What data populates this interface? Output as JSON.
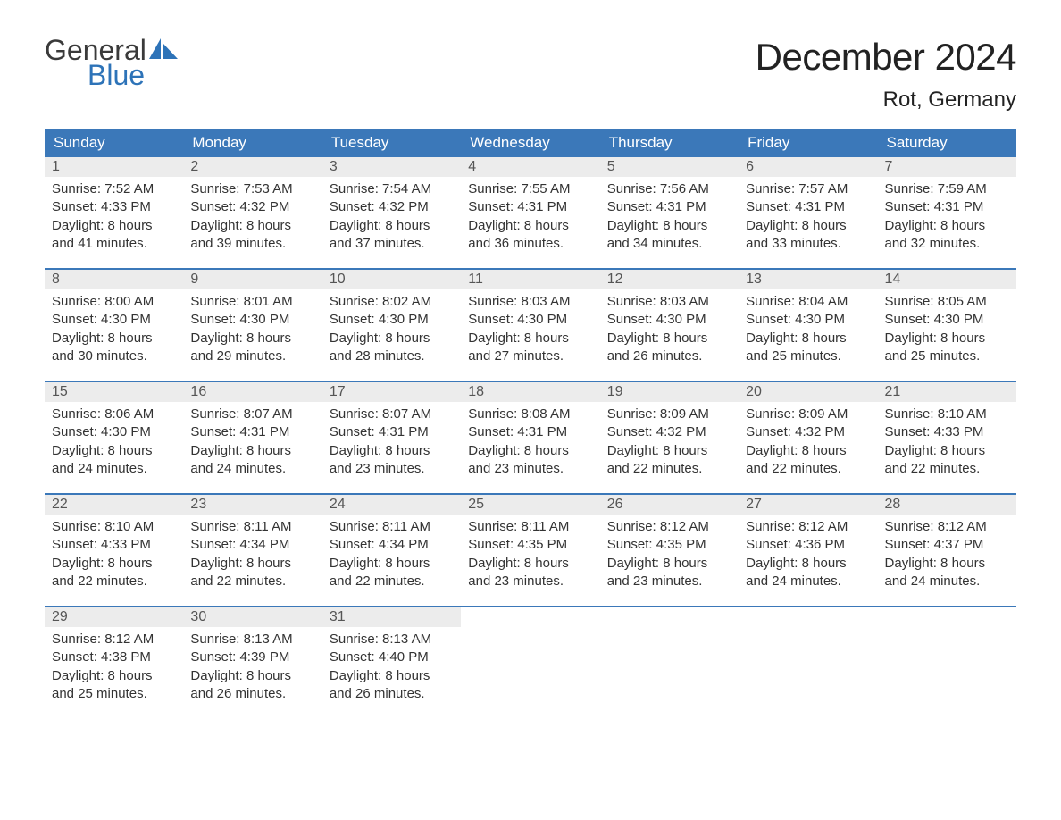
{
  "brand": {
    "general": "General",
    "blue": "Blue"
  },
  "title": "December 2024",
  "location": "Rot, Germany",
  "colors": {
    "header_bg": "#3b78b9",
    "header_text": "#ffffff",
    "daynum_bg": "#ececec",
    "daynum_text": "#555555",
    "body_text": "#333333",
    "brand_blue": "#2d73b8",
    "brand_gray": "#3a3a3a",
    "page_bg": "#ffffff"
  },
  "weekdays": [
    "Sunday",
    "Monday",
    "Tuesday",
    "Wednesday",
    "Thursday",
    "Friday",
    "Saturday"
  ],
  "weeks": [
    [
      {
        "n": "1",
        "sr": "Sunrise: 7:52 AM",
        "ss": "Sunset: 4:33 PM",
        "d1": "Daylight: 8 hours",
        "d2": "and 41 minutes."
      },
      {
        "n": "2",
        "sr": "Sunrise: 7:53 AM",
        "ss": "Sunset: 4:32 PM",
        "d1": "Daylight: 8 hours",
        "d2": "and 39 minutes."
      },
      {
        "n": "3",
        "sr": "Sunrise: 7:54 AM",
        "ss": "Sunset: 4:32 PM",
        "d1": "Daylight: 8 hours",
        "d2": "and 37 minutes."
      },
      {
        "n": "4",
        "sr": "Sunrise: 7:55 AM",
        "ss": "Sunset: 4:31 PM",
        "d1": "Daylight: 8 hours",
        "d2": "and 36 minutes."
      },
      {
        "n": "5",
        "sr": "Sunrise: 7:56 AM",
        "ss": "Sunset: 4:31 PM",
        "d1": "Daylight: 8 hours",
        "d2": "and 34 minutes."
      },
      {
        "n": "6",
        "sr": "Sunrise: 7:57 AM",
        "ss": "Sunset: 4:31 PM",
        "d1": "Daylight: 8 hours",
        "d2": "and 33 minutes."
      },
      {
        "n": "7",
        "sr": "Sunrise: 7:59 AM",
        "ss": "Sunset: 4:31 PM",
        "d1": "Daylight: 8 hours",
        "d2": "and 32 minutes."
      }
    ],
    [
      {
        "n": "8",
        "sr": "Sunrise: 8:00 AM",
        "ss": "Sunset: 4:30 PM",
        "d1": "Daylight: 8 hours",
        "d2": "and 30 minutes."
      },
      {
        "n": "9",
        "sr": "Sunrise: 8:01 AM",
        "ss": "Sunset: 4:30 PM",
        "d1": "Daylight: 8 hours",
        "d2": "and 29 minutes."
      },
      {
        "n": "10",
        "sr": "Sunrise: 8:02 AM",
        "ss": "Sunset: 4:30 PM",
        "d1": "Daylight: 8 hours",
        "d2": "and 28 minutes."
      },
      {
        "n": "11",
        "sr": "Sunrise: 8:03 AM",
        "ss": "Sunset: 4:30 PM",
        "d1": "Daylight: 8 hours",
        "d2": "and 27 minutes."
      },
      {
        "n": "12",
        "sr": "Sunrise: 8:03 AM",
        "ss": "Sunset: 4:30 PM",
        "d1": "Daylight: 8 hours",
        "d2": "and 26 minutes."
      },
      {
        "n": "13",
        "sr": "Sunrise: 8:04 AM",
        "ss": "Sunset: 4:30 PM",
        "d1": "Daylight: 8 hours",
        "d2": "and 25 minutes."
      },
      {
        "n": "14",
        "sr": "Sunrise: 8:05 AM",
        "ss": "Sunset: 4:30 PM",
        "d1": "Daylight: 8 hours",
        "d2": "and 25 minutes."
      }
    ],
    [
      {
        "n": "15",
        "sr": "Sunrise: 8:06 AM",
        "ss": "Sunset: 4:30 PM",
        "d1": "Daylight: 8 hours",
        "d2": "and 24 minutes."
      },
      {
        "n": "16",
        "sr": "Sunrise: 8:07 AM",
        "ss": "Sunset: 4:31 PM",
        "d1": "Daylight: 8 hours",
        "d2": "and 24 minutes."
      },
      {
        "n": "17",
        "sr": "Sunrise: 8:07 AM",
        "ss": "Sunset: 4:31 PM",
        "d1": "Daylight: 8 hours",
        "d2": "and 23 minutes."
      },
      {
        "n": "18",
        "sr": "Sunrise: 8:08 AM",
        "ss": "Sunset: 4:31 PM",
        "d1": "Daylight: 8 hours",
        "d2": "and 23 minutes."
      },
      {
        "n": "19",
        "sr": "Sunrise: 8:09 AM",
        "ss": "Sunset: 4:32 PM",
        "d1": "Daylight: 8 hours",
        "d2": "and 22 minutes."
      },
      {
        "n": "20",
        "sr": "Sunrise: 8:09 AM",
        "ss": "Sunset: 4:32 PM",
        "d1": "Daylight: 8 hours",
        "d2": "and 22 minutes."
      },
      {
        "n": "21",
        "sr": "Sunrise: 8:10 AM",
        "ss": "Sunset: 4:33 PM",
        "d1": "Daylight: 8 hours",
        "d2": "and 22 minutes."
      }
    ],
    [
      {
        "n": "22",
        "sr": "Sunrise: 8:10 AM",
        "ss": "Sunset: 4:33 PM",
        "d1": "Daylight: 8 hours",
        "d2": "and 22 minutes."
      },
      {
        "n": "23",
        "sr": "Sunrise: 8:11 AM",
        "ss": "Sunset: 4:34 PM",
        "d1": "Daylight: 8 hours",
        "d2": "and 22 minutes."
      },
      {
        "n": "24",
        "sr": "Sunrise: 8:11 AM",
        "ss": "Sunset: 4:34 PM",
        "d1": "Daylight: 8 hours",
        "d2": "and 22 minutes."
      },
      {
        "n": "25",
        "sr": "Sunrise: 8:11 AM",
        "ss": "Sunset: 4:35 PM",
        "d1": "Daylight: 8 hours",
        "d2": "and 23 minutes."
      },
      {
        "n": "26",
        "sr": "Sunrise: 8:12 AM",
        "ss": "Sunset: 4:35 PM",
        "d1": "Daylight: 8 hours",
        "d2": "and 23 minutes."
      },
      {
        "n": "27",
        "sr": "Sunrise: 8:12 AM",
        "ss": "Sunset: 4:36 PM",
        "d1": "Daylight: 8 hours",
        "d2": "and 24 minutes."
      },
      {
        "n": "28",
        "sr": "Sunrise: 8:12 AM",
        "ss": "Sunset: 4:37 PM",
        "d1": "Daylight: 8 hours",
        "d2": "and 24 minutes."
      }
    ],
    [
      {
        "n": "29",
        "sr": "Sunrise: 8:12 AM",
        "ss": "Sunset: 4:38 PM",
        "d1": "Daylight: 8 hours",
        "d2": "and 25 minutes."
      },
      {
        "n": "30",
        "sr": "Sunrise: 8:13 AM",
        "ss": "Sunset: 4:39 PM",
        "d1": "Daylight: 8 hours",
        "d2": "and 26 minutes."
      },
      {
        "n": "31",
        "sr": "Sunrise: 8:13 AM",
        "ss": "Sunset: 4:40 PM",
        "d1": "Daylight: 8 hours",
        "d2": "and 26 minutes."
      },
      null,
      null,
      null,
      null
    ]
  ]
}
